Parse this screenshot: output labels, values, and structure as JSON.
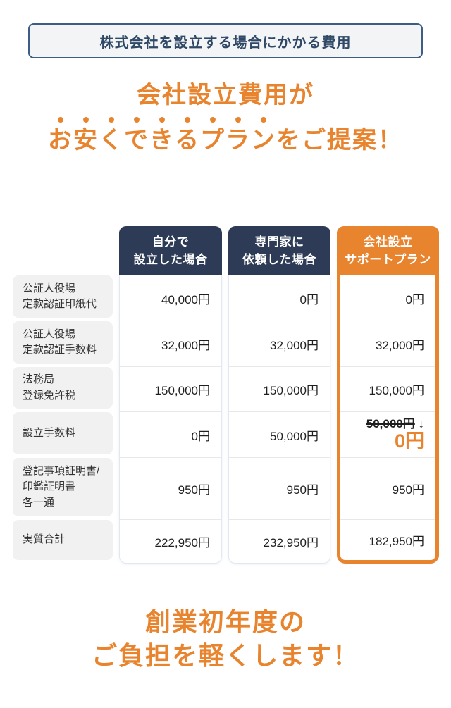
{
  "badge": {
    "label": "株式会社を設立する場合にかかる費用"
  },
  "hero": {
    "line1": "会社設立費用が",
    "line2_emphasis": "お安くできるプラン",
    "line2_rest": "をご提案！"
  },
  "accent_colors": {
    "navy": "#2d3b56",
    "orange": "#e8832e"
  },
  "table": {
    "row_labels": [
      [
        "公証人役場",
        "定款認証印紙代"
      ],
      [
        "公証人役場",
        "定款認証手数料"
      ],
      [
        "法務局",
        "登録免許税"
      ],
      [
        "設立手数料"
      ],
      [
        "登記事項証明書/",
        "印鑑証明書",
        "各一通"
      ],
      [
        "実質合計"
      ]
    ],
    "columns": [
      {
        "header_lines": [
          "自分で",
          "設立した場合"
        ],
        "accent": "navy",
        "values": [
          "40,000円",
          "32,000円",
          "150,000円",
          "0円",
          "950円",
          "222,950円"
        ]
      },
      {
        "header_lines": [
          "専門家に",
          "依頼した場合"
        ],
        "accent": "navy",
        "values": [
          "0円",
          "32,000円",
          "150,000円",
          "50,000円",
          "950円",
          "232,950円"
        ]
      },
      {
        "header_lines": [
          "会社設立",
          "サポートプラン"
        ],
        "accent": "orange",
        "values": [
          "0円",
          "32,000円",
          "150,000円",
          {
            "old": "50,000円",
            "arrow": "↓",
            "new": "0円"
          },
          "950円",
          "182,950円"
        ]
      }
    ]
  },
  "footer": {
    "line1": "創業初年度の",
    "line2": "ご負担を軽くします！"
  }
}
